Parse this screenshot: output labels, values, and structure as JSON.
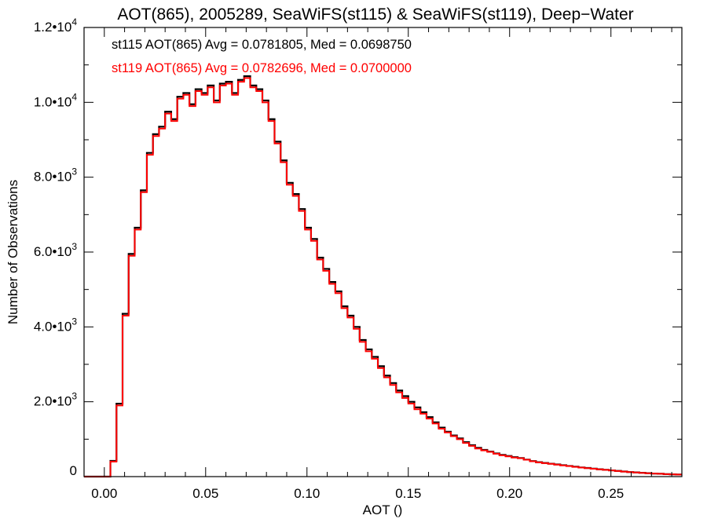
{
  "chart_data": {
    "type": "line",
    "style": "step-histogram",
    "title": "AOT(865), 2005289, SeaWiFS(st115) & SeaWiFS(st119), Deep−Water",
    "xlabel": "AOT ()",
    "ylabel": "Number of Observations",
    "xlim": [
      -0.01,
      0.285
    ],
    "ylim": [
      0,
      12000
    ],
    "grid": false,
    "x_ticks": [
      {
        "value": 0.0,
        "label": "0.00"
      },
      {
        "value": 0.05,
        "label": "0.05"
      },
      {
        "value": 0.1,
        "label": "0.10"
      },
      {
        "value": 0.15,
        "label": "0.15"
      },
      {
        "value": 0.2,
        "label": "0.20"
      },
      {
        "value": 0.25,
        "label": "0.25"
      }
    ],
    "y_ticks": [
      {
        "value": 0,
        "mantissa": "0",
        "exp": ""
      },
      {
        "value": 2000,
        "mantissa": "2.0•10",
        "exp": "3"
      },
      {
        "value": 4000,
        "mantissa": "4.0•10",
        "exp": "3"
      },
      {
        "value": 6000,
        "mantissa": "6.0•10",
        "exp": "3"
      },
      {
        "value": 8000,
        "mantissa": "8.0•10",
        "exp": "3"
      },
      {
        "value": 10000,
        "mantissa": "1.0•10",
        "exp": "4"
      },
      {
        "value": 12000,
        "mantissa": "1.2•10",
        "exp": "4"
      }
    ],
    "legend_placement": "top-left",
    "legend": [
      "st115 AOT(865) Avg = 0.0781805, Med = 0.0698750",
      "st119 AOT(865) Avg = 0.0782696, Med = 0.0700000"
    ],
    "bin_start": 0.0,
    "bin_width": 0.003,
    "series": [
      {
        "name": "st115",
        "color": "#000000",
        "values": [
          0,
          420,
          1950,
          4350,
          5950,
          6650,
          7650,
          8650,
          9150,
          9350,
          9750,
          9550,
          10150,
          10250,
          9950,
          10350,
          10250,
          10450,
          10050,
          10500,
          10550,
          10250,
          10600,
          10700,
          10450,
          10350,
          10050,
          9550,
          8950,
          8450,
          7850,
          7550,
          7150,
          6650,
          6350,
          5850,
          5550,
          5200,
          4950,
          4550,
          4300,
          4000,
          3650,
          3400,
          3200,
          2950,
          2700,
          2500,
          2300,
          2150,
          2000,
          1850,
          1720,
          1590,
          1450,
          1310,
          1200,
          1100,
          1020,
          920,
          840,
          770,
          715,
          670,
          620,
          580,
          550,
          520,
          495,
          455,
          415,
          385,
          365,
          345,
          325,
          305,
          285,
          265,
          245,
          230,
          212,
          197,
          182,
          167,
          152,
          137,
          122,
          112,
          102,
          92,
          82,
          76,
          66,
          61,
          56
        ]
      },
      {
        "name": "st119",
        "color": "#ff0000",
        "values": [
          0,
          400,
          1900,
          4300,
          5900,
          6600,
          7600,
          8600,
          9100,
          9300,
          9700,
          9500,
          10100,
          10200,
          9900,
          10300,
          10200,
          10400,
          10000,
          10450,
          10500,
          10200,
          10550,
          10650,
          10400,
          10300,
          10000,
          9500,
          8900,
          8400,
          7800,
          7500,
          7100,
          6600,
          6300,
          5800,
          5500,
          5150,
          4900,
          4500,
          4250,
          3950,
          3600,
          3350,
          3150,
          2900,
          2650,
          2450,
          2250,
          2100,
          1950,
          1800,
          1680,
          1550,
          1420,
          1280,
          1180,
          1080,
          1000,
          900,
          820,
          750,
          700,
          660,
          610,
          570,
          540,
          510,
          490,
          450,
          410,
          380,
          360,
          340,
          320,
          300,
          280,
          260,
          240,
          225,
          210,
          195,
          180,
          165,
          150,
          135,
          120,
          110,
          100,
          90,
          80,
          75,
          65,
          60,
          55
        ]
      }
    ]
  }
}
